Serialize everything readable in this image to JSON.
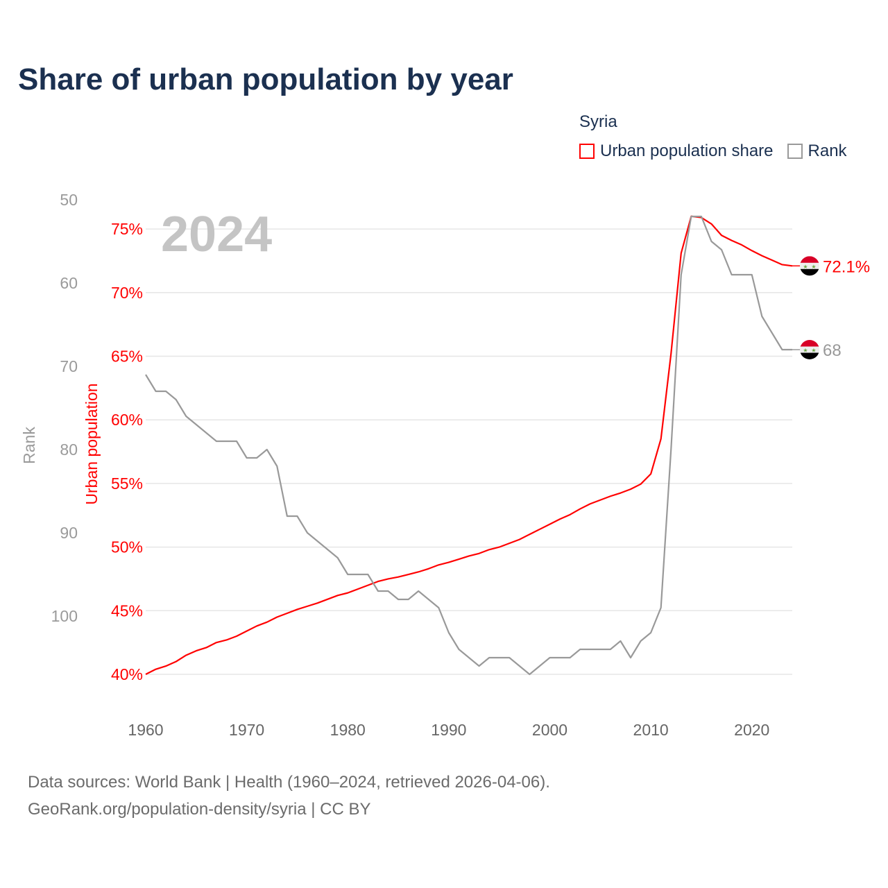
{
  "title": "Share of urban population by year",
  "legend": {
    "title": "Syria",
    "items": [
      {
        "label": "Urban population share",
        "color": "#ff0000"
      },
      {
        "label": "Rank",
        "color": "#999999"
      }
    ]
  },
  "footer": {
    "line1": "Data sources: World Bank | Health (1960–2024, retrieved 2026-04-06).",
    "line2": "GeoRank.org/population-density/syria | CC BY"
  },
  "chart_data": {
    "type": "line",
    "title": "Share of urban population by year",
    "year_label": "2024",
    "x": [
      1960,
      1961,
      1962,
      1963,
      1964,
      1965,
      1966,
      1967,
      1968,
      1969,
      1970,
      1971,
      1972,
      1973,
      1974,
      1975,
      1976,
      1977,
      1978,
      1979,
      1980,
      1981,
      1982,
      1983,
      1984,
      1985,
      1986,
      1987,
      1988,
      1989,
      1990,
      1991,
      1992,
      1993,
      1994,
      1995,
      1996,
      1997,
      1998,
      1999,
      2000,
      2001,
      2002,
      2003,
      2004,
      2005,
      2006,
      2007,
      2008,
      2009,
      2010,
      2011,
      2012,
      2013,
      2014,
      2015,
      2016,
      2017,
      2018,
      2019,
      2020,
      2021,
      2022,
      2023,
      2024
    ],
    "xticks": [
      "1960",
      "1970",
      "1980",
      "1990",
      "2000",
      "2010",
      "2020"
    ],
    "xlim": [
      1960,
      2024
    ],
    "series": [
      {
        "name": "Urban population share",
        "axis": "left",
        "color": "#ff0000",
        "end_label": "72.1%",
        "values": [
          40.0,
          40.4,
          40.65,
          41.0,
          41.5,
          41.85,
          42.1,
          42.5,
          42.7,
          43.0,
          43.4,
          43.8,
          44.1,
          44.5,
          44.8,
          45.1,
          45.35,
          45.6,
          45.9,
          46.2,
          46.4,
          46.7,
          47.0,
          47.3,
          47.5,
          47.65,
          47.85,
          48.05,
          48.3,
          48.6,
          48.8,
          49.05,
          49.3,
          49.5,
          49.8,
          50.0,
          50.3,
          50.6,
          51.0,
          51.4,
          51.8,
          52.2,
          52.55,
          53.0,
          53.4,
          53.7,
          54.0,
          54.25,
          54.55,
          54.95,
          55.75,
          58.5,
          65.2,
          73.1,
          76.0,
          75.9,
          75.4,
          74.5,
          74.1,
          73.75,
          73.3,
          72.9,
          72.55,
          72.2,
          72.1
        ]
      },
      {
        "name": "Rank",
        "axis": "right",
        "color": "#999999",
        "end_label": "68",
        "values": [
          71,
          73,
          73,
          74,
          76,
          77,
          78,
          79,
          79,
          79,
          81,
          81,
          80,
          82,
          88,
          88,
          90,
          91,
          92,
          93,
          95,
          95,
          95,
          97,
          97,
          98,
          98,
          97,
          98,
          99,
          102,
          104,
          105,
          106,
          105,
          105,
          105,
          106,
          107,
          106,
          105,
          105,
          105,
          104,
          104,
          104,
          104,
          103,
          105,
          103,
          102,
          99,
          80,
          59,
          52,
          52,
          55,
          56,
          59,
          59,
          59,
          64,
          66,
          68,
          68
        ]
      }
    ],
    "left_axis": {
      "label": "Urban population",
      "ticks": [
        "40%",
        "45%",
        "50%",
        "55%",
        "60%",
        "65%",
        "70%",
        "75%"
      ],
      "tick_values": [
        40,
        45,
        50,
        55,
        60,
        65,
        70,
        75
      ]
    },
    "rank_axis": {
      "label": "Rank",
      "ticks": [
        "50",
        "60",
        "70",
        "80",
        "90",
        "100"
      ],
      "tick_values": [
        50,
        60,
        70,
        80,
        90,
        100
      ],
      "inverted": true
    },
    "grid": true,
    "legend_position": "top-right"
  }
}
